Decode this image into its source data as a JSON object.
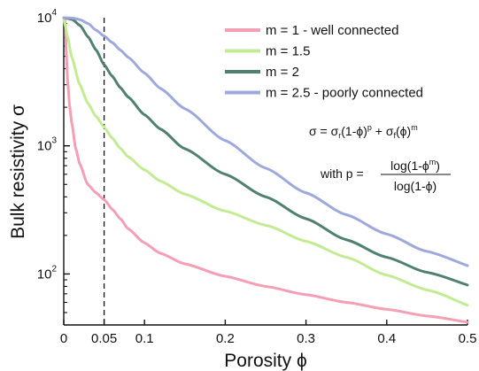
{
  "chart_data": {
    "type": "line",
    "xlabel": "Porosity ϕ",
    "ylabel": "Bulk resistivity σ",
    "xlim": [
      0,
      0.5
    ],
    "ylim": [
      40,
      10000
    ],
    "yscale": "log",
    "grid": false,
    "legend_position": "top-right",
    "x_ticks": [
      {
        "value": 0,
        "label": "0"
      },
      {
        "value": 0.05,
        "label": "0.05"
      },
      {
        "value": 0.1,
        "label": "0.1"
      },
      {
        "value": 0.2,
        "label": "0.2"
      },
      {
        "value": 0.3,
        "label": "0.3"
      },
      {
        "value": 0.4,
        "label": "0.4"
      },
      {
        "value": 0.5,
        "label": "0.5"
      }
    ],
    "y_ticks": [
      {
        "value": 100,
        "base": "10",
        "exp": "2"
      },
      {
        "value": 1000,
        "base": "10",
        "exp": "3"
      },
      {
        "value": 10000,
        "base": "10",
        "exp": "4"
      }
    ],
    "reference_line": {
      "x": 0.05,
      "style": "dashed"
    },
    "formula": {
      "line1": {
        "lhs": "σ = σ",
        "sub_r": "r",
        "mid1": "(1-ϕ)",
        "sup_p": "p",
        "mid2": " + σ",
        "sub_f": "f",
        "mid3": "(ϕ)",
        "sup_m": "m"
      },
      "line2": {
        "prefix": "with p =",
        "numerator": "log(1-ϕ",
        "numerator_sup": "m",
        "numerator_end": ")",
        "denominator": "log(1-ϕ)"
      }
    },
    "series": [
      {
        "name": "m = 1 - well connected",
        "color": "#f49fb4",
        "x": [
          0.001,
          0.002,
          0.003,
          0.005,
          0.0075,
          0.01,
          0.015,
          0.02,
          0.03,
          0.04,
          0.05,
          0.06,
          0.07,
          0.08,
          0.1,
          0.12,
          0.15,
          0.2,
          0.25,
          0.3,
          0.35,
          0.4,
          0.45,
          0.5
        ],
        "y": [
          10000,
          9000,
          5600,
          3100,
          2000,
          1500,
          950,
          720,
          500,
          430,
          380,
          320,
          270,
          225,
          175,
          145,
          120,
          96,
          80,
          69,
          60,
          53,
          47,
          42
        ]
      },
      {
        "name": "m = 1.5",
        "color": "#c2eb94",
        "x": [
          0,
          0.005,
          0.01,
          0.02,
          0.03,
          0.04,
          0.05,
          0.06,
          0.07,
          0.08,
          0.1,
          0.12,
          0.15,
          0.2,
          0.25,
          0.3,
          0.35,
          0.4,
          0.45,
          0.5
        ],
        "y": [
          10000,
          7000,
          4900,
          3000,
          2150,
          1700,
          1400,
          1150,
          960,
          820,
          650,
          530,
          420,
          310,
          240,
          180,
          135,
          98,
          75,
          57
        ]
      },
      {
        "name": "m = 2",
        "color": "#4f8071",
        "x": [
          0,
          0.01,
          0.02,
          0.03,
          0.04,
          0.05,
          0.06,
          0.07,
          0.08,
          0.1,
          0.12,
          0.15,
          0.2,
          0.25,
          0.3,
          0.35,
          0.4,
          0.45,
          0.5
        ],
        "y": [
          10000,
          9700,
          8700,
          7100,
          5600,
          4300,
          3500,
          2850,
          2400,
          1750,
          1350,
          950,
          600,
          400,
          270,
          185,
          135,
          103,
          82
        ]
      },
      {
        "name": "m = 2.5 - poorly connected",
        "color": "#9fa8dc",
        "x": [
          0,
          0.01,
          0.02,
          0.03,
          0.04,
          0.05,
          0.06,
          0.07,
          0.08,
          0.1,
          0.12,
          0.15,
          0.2,
          0.25,
          0.3,
          0.35,
          0.4,
          0.45,
          0.5
        ],
        "y": [
          10000,
          9950,
          9650,
          9000,
          8000,
          7200,
          6400,
          5600,
          4900,
          3700,
          2800,
          1950,
          1100,
          670,
          430,
          290,
          205,
          150,
          116
        ]
      }
    ]
  }
}
